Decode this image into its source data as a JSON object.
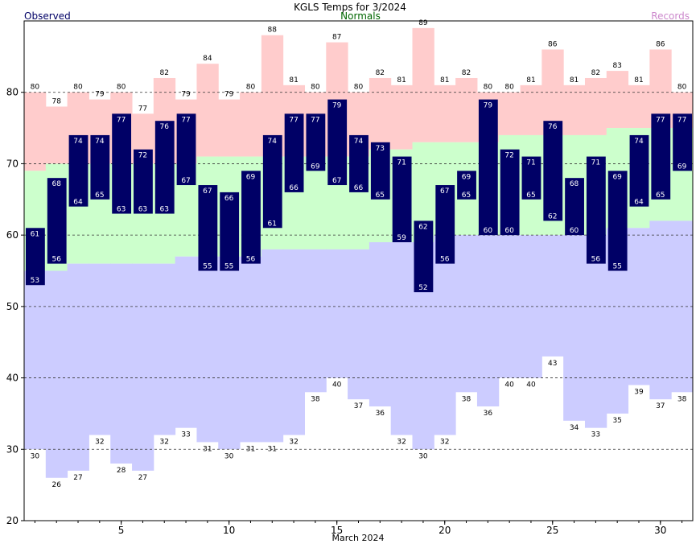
{
  "chart_data": {
    "type": "bar",
    "title": "KGLS Temps for 3/2024",
    "xlabel": "March 2024",
    "ylabel": "",
    "ylim": [
      20,
      90
    ],
    "xlim": [
      1,
      31
    ],
    "yticks": [
      20,
      30,
      40,
      50,
      60,
      70,
      80
    ],
    "xticks": [
      5,
      10,
      15,
      20,
      25,
      30
    ],
    "grid": "horizontal dashed",
    "legend": {
      "observed": "Observed",
      "normals": "Normals",
      "records": "Records"
    },
    "colors": {
      "observed": "#000066",
      "normals_fill": "#ccffcc",
      "record_high_fill": "#ffcccc",
      "record_low_fill": "#ccccff",
      "normals_label": "#006600",
      "records_label": "#cc88cc",
      "observed_label": "#000066",
      "grid": "#333333"
    },
    "days": [
      1,
      2,
      3,
      4,
      5,
      6,
      7,
      8,
      9,
      10,
      11,
      12,
      13,
      14,
      15,
      16,
      17,
      18,
      19,
      20,
      21,
      22,
      23,
      24,
      25,
      26,
      27,
      28,
      29,
      30,
      31
    ],
    "series": [
      {
        "name": "Observed",
        "high": [
          61,
          68,
          74,
          74,
          77,
          72,
          76,
          77,
          67,
          66,
          69,
          74,
          77,
          77,
          79,
          74,
          73,
          71,
          62,
          67,
          69,
          79,
          72,
          71,
          76,
          68,
          71,
          69,
          74,
          77,
          77
        ],
        "low": [
          53,
          56,
          64,
          65,
          63,
          63,
          63,
          67,
          55,
          55,
          56,
          61,
          66,
          69,
          67,
          66,
          65,
          59,
          52,
          56,
          65,
          60,
          60,
          65,
          62,
          60,
          56,
          55,
          64,
          65,
          69
        ]
      },
      {
        "name": "Normals",
        "high": [
          69,
          70,
          70,
          70,
          70,
          70,
          70,
          70,
          71,
          71,
          71,
          71,
          71,
          71,
          71,
          71,
          72,
          72,
          73,
          73,
          73,
          73,
          74,
          74,
          74,
          74,
          74,
          75,
          75,
          75,
          75
        ],
        "low": [
          55,
          55,
          56,
          56,
          56,
          56,
          56,
          57,
          57,
          57,
          57,
          58,
          58,
          58,
          58,
          58,
          59,
          59,
          59,
          60,
          60,
          60,
          60,
          60,
          60,
          60,
          60,
          61,
          61,
          62,
          62
        ]
      },
      {
        "name": "Records",
        "high": [
          80,
          78,
          80,
          79,
          80,
          77,
          82,
          79,
          84,
          79,
          80,
          88,
          81,
          80,
          87,
          80,
          82,
          81,
          89,
          81,
          82,
          80,
          80,
          81,
          86,
          81,
          82,
          83,
          81,
          86,
          80
        ],
        "low": [
          30,
          26,
          27,
          32,
          28,
          27,
          32,
          33,
          31,
          30,
          31,
          31,
          32,
          38,
          40,
          37,
          36,
          32,
          30,
          32,
          38,
          36,
          40,
          40,
          43,
          34,
          33,
          35,
          39,
          37,
          38
        ]
      }
    ]
  }
}
